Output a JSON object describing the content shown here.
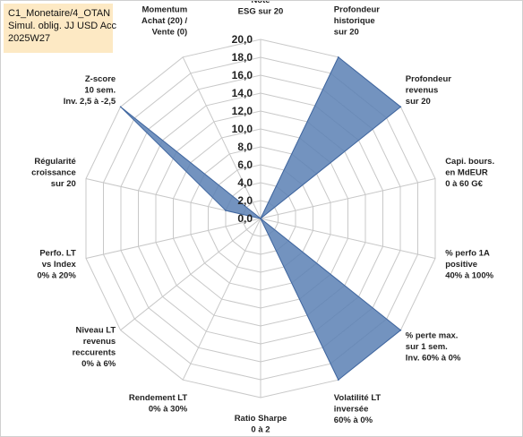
{
  "info_box": {
    "line1": "C1_Monetaire/4_OTAN",
    "line2": "Simul. oblig. JJ USD Acc",
    "line3": "2025W27"
  },
  "colors": {
    "series_fill": "#5a80b4",
    "series_stroke": "#3f66a0",
    "grid": "#c8c8c8",
    "info_bg": "#fde9c4"
  },
  "chart_data": {
    "type": "radar",
    "rlim": [
      0,
      20
    ],
    "ticks": [
      "0,0",
      "2,0",
      "4,0",
      "6,0",
      "8,0",
      "10,0",
      "12,0",
      "14,0",
      "16,0",
      "18,0",
      "20,0"
    ],
    "tick_values": [
      0,
      2,
      4,
      6,
      8,
      10,
      12,
      14,
      16,
      18,
      20
    ],
    "grid": true,
    "axes": [
      [
        "Note",
        "ESG sur 20"
      ],
      [
        "Profondeur",
        "historique",
        "sur 20"
      ],
      [
        "Profondeur",
        "revenus",
        "sur 20"
      ],
      [
        "Capi. bours.",
        "en MdEUR",
        "0 à 60 G€"
      ],
      [
        "% perfo 1A",
        "positive",
        "40% à 100%"
      ],
      [
        "% perte max.",
        "sur 1 sem.",
        "Inv. 60% à 0%"
      ],
      [
        "Volatilité LT",
        "inversée",
        "60% à 0%"
      ],
      [
        "Ratio Sharpe",
        "0 à 2"
      ],
      [
        "Rendement LT",
        "0% à 30%"
      ],
      [
        "Niveau LT",
        "revenus",
        "reccurents",
        "0% à 6%"
      ],
      [
        "Perfo. LT",
        "vs Index",
        "0% à 20%"
      ],
      [
        "Régularité",
        "croissance",
        "sur 20"
      ],
      [
        "Z-score",
        "10 sem.",
        "Inv. 2,5 à -2,5"
      ],
      [
        "Momentum",
        "Achat (20) /",
        "Vente (0)"
      ]
    ],
    "series": [
      {
        "values": [
          0,
          20,
          20,
          0,
          0,
          20,
          20,
          0,
          0,
          0,
          0,
          4,
          20,
          0
        ]
      }
    ]
  }
}
